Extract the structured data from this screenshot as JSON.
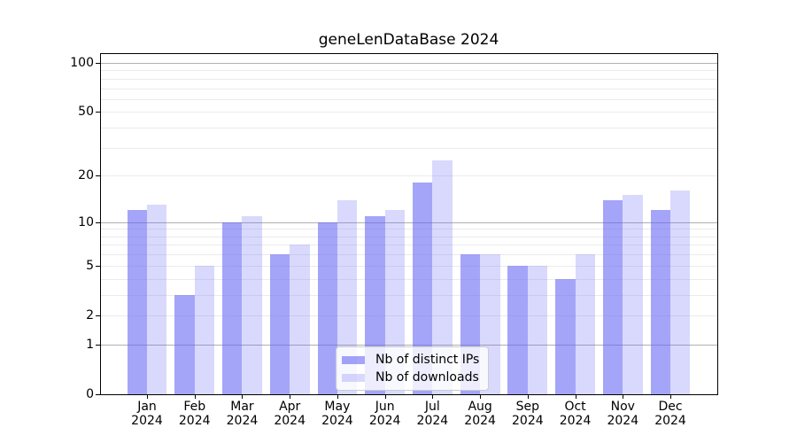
{
  "chart_data": {
    "type": "bar",
    "title": "geneLenDataBase 2024",
    "year_label": "2024",
    "categories": [
      "Jan",
      "Feb",
      "Mar",
      "Apr",
      "May",
      "Jun",
      "Jul",
      "Aug",
      "Sep",
      "Oct",
      "Nov",
      "Dec"
    ],
    "series": [
      {
        "name": "Nb of distinct IPs",
        "color": "#6262f5",
        "alpha": 0.58,
        "values": [
          12,
          3,
          10,
          6,
          10,
          11,
          18,
          6,
          5,
          4,
          14,
          12
        ]
      },
      {
        "name": "Nb of downloads",
        "color": "#6262f5",
        "alpha": 0.24,
        "values": [
          13,
          5,
          11,
          7,
          14,
          12,
          25,
          6,
          5,
          6,
          15,
          16
        ]
      }
    ],
    "yscale": "log1p",
    "ylim": [
      0,
      115
    ],
    "yticks": [
      0,
      1,
      2,
      5,
      10,
      20,
      50,
      100
    ],
    "grid_major_values": [
      1,
      10,
      100
    ],
    "grid_minor_values": [
      2,
      3,
      4,
      5,
      6,
      7,
      8,
      9,
      20,
      30,
      40,
      50,
      60,
      70,
      80,
      90
    ],
    "grid": true,
    "legend_position": "lower center",
    "xlabel": "",
    "ylabel": ""
  },
  "colors": {
    "bar_base": "#6262f5",
    "major_grid": "#b0b0b0",
    "minor_grid": "#ebebeb",
    "axis": "#000000",
    "background": "#ffffff",
    "legend_border": "#cccccc"
  }
}
